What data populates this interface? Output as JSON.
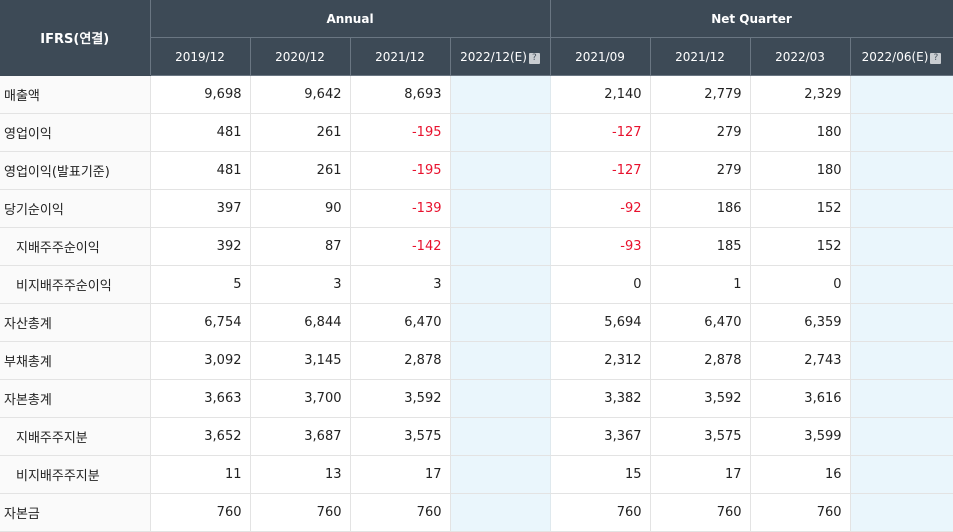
{
  "header": {
    "corner_label": "IFRS(연결)",
    "group_annual": "Annual",
    "group_quarter": "Net Quarter",
    "columns": [
      "2019/12",
      "2020/12",
      "2021/12",
      "2022/12(E)",
      "2021/09",
      "2021/12",
      "2022/03",
      "2022/06(E)"
    ],
    "estimate_help_icon": "question-icon"
  },
  "rows": [
    {
      "label": "매출액",
      "values": [
        "9,698",
        "9,642",
        "8,693",
        "",
        "2,140",
        "2,779",
        "2,329",
        ""
      ]
    },
    {
      "label": "영업이익",
      "values": [
        "481",
        "261",
        "-195",
        "",
        "-127",
        "279",
        "180",
        ""
      ]
    },
    {
      "label": "영업이익(발표기준)",
      "values": [
        "481",
        "261",
        "-195",
        "",
        "-127",
        "279",
        "180",
        ""
      ]
    },
    {
      "label": "당기순이익",
      "values": [
        "397",
        "90",
        "-139",
        "",
        "-92",
        "186",
        "152",
        ""
      ]
    },
    {
      "label": "지배주주순이익",
      "values": [
        "392",
        "87",
        "-142",
        "",
        "-93",
        "185",
        "152",
        ""
      ]
    },
    {
      "label": "비지배주주순이익",
      "values": [
        "5",
        "3",
        "3",
        "",
        "0",
        "1",
        "0",
        ""
      ]
    },
    {
      "label": "자산총계",
      "values": [
        "6,754",
        "6,844",
        "6,470",
        "",
        "5,694",
        "6,470",
        "6,359",
        ""
      ]
    },
    {
      "label": "부채총계",
      "values": [
        "3,092",
        "3,145",
        "2,878",
        "",
        "2,312",
        "2,878",
        "2,743",
        ""
      ]
    },
    {
      "label": "자본총계",
      "values": [
        "3,663",
        "3,700",
        "3,592",
        "",
        "3,382",
        "3,592",
        "3,616",
        ""
      ]
    },
    {
      "label": "지배주주지분",
      "values": [
        "3,652",
        "3,687",
        "3,575",
        "",
        "3,367",
        "3,575",
        "3,599",
        ""
      ]
    },
    {
      "label": "비지배주주지분",
      "values": [
        "11",
        "13",
        "17",
        "",
        "15",
        "17",
        "16",
        ""
      ]
    },
    {
      "label": "자본금",
      "values": [
        "760",
        "760",
        "760",
        "",
        "760",
        "760",
        "760",
        ""
      ]
    }
  ],
  "colors": {
    "header_bg": "#3d4a56",
    "estimate_bg": "#eaf6fc",
    "negative": "#e8112d"
  }
}
